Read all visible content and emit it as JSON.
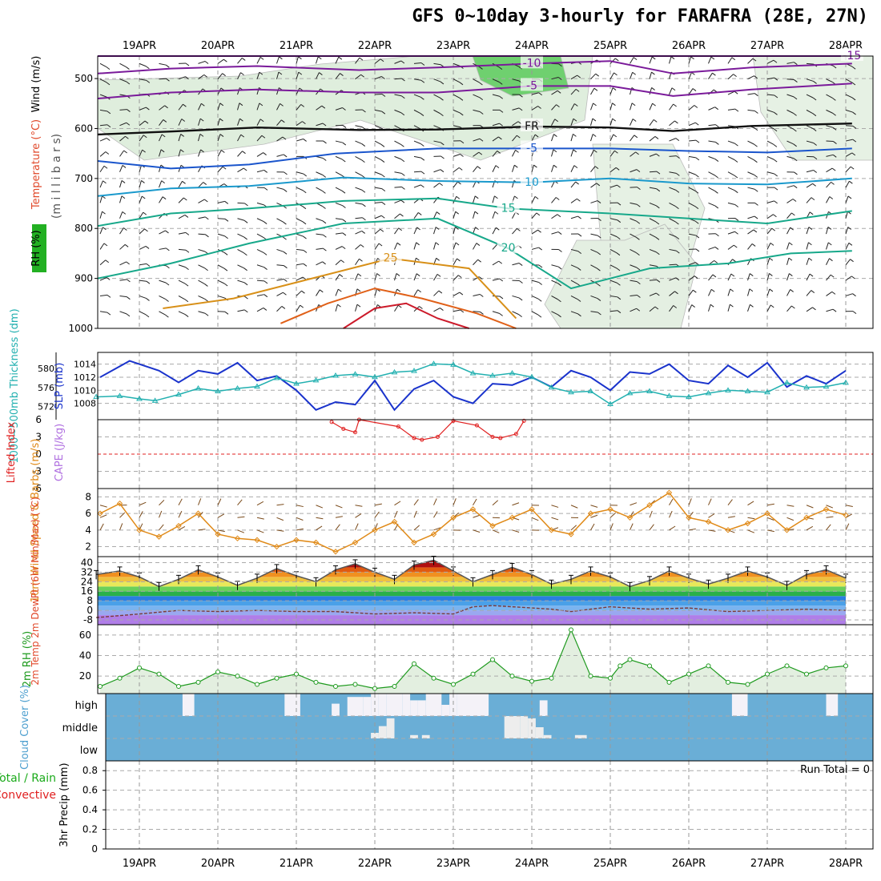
{
  "title": "GFS 0~10day 3-hourly for FARAFRA (28E, 27N)",
  "colors": {
    "sounding_label": "#555555",
    "temp": "#e0482a",
    "rh_box": "#22b022",
    "slp": "#1a33cc",
    "thickness": "#22b0b0",
    "cape": "#b070e0",
    "li": "#e02020",
    "wind10": "#e08a18",
    "barb": "#7a4a1a",
    "rh2m": "#1e9a1e",
    "cloud": "#6aaed6",
    "cloud_text": "#4d9fcf",
    "precip_total": "#1aaa1a",
    "precip_conv": "#e02020"
  },
  "chart_data": {
    "type": "meteogram",
    "time_axis": {
      "dates": [
        "19APR",
        "20APR",
        "21APR",
        "22APR",
        "23APR",
        "24APR",
        "25APR",
        "26APR",
        "27APR",
        "28APR"
      ],
      "range_days": [
        -0.55,
        9.1
      ]
    },
    "sounding": {
      "ylabel_pressure": "(m i l l i b a r s)",
      "ylabel_rh": "RH (%)",
      "ylabel_temp": "Temperature (°C)",
      "ylabel_wind": "Wind (m/s)",
      "pressure_ticks": [
        "500",
        "600",
        "700",
        "800",
        "900",
        "1000"
      ],
      "pressure_values": [
        500,
        600,
        700,
        800,
        900,
        1000
      ],
      "pressure_range": [
        455,
        1000
      ],
      "contours": [
        {
          "label": "-15",
          "color": "#7a1a9a",
          "t": [
            -0.55,
            9.1
          ],
          "p": [
            455,
            455
          ]
        },
        {
          "label": "-10",
          "color": "#7a1a9a",
          "t": [
            -0.55,
            0.4,
            1.5,
            2.8,
            3.8,
            5.0,
            6.0,
            6.8,
            7.8,
            9.1
          ],
          "p": [
            490,
            480,
            475,
            483,
            478,
            470,
            465,
            490,
            478,
            470
          ]
        },
        {
          "label": "-5",
          "color": "#7a1a9a",
          "t": [
            -0.55,
            0.4,
            1.5,
            2.8,
            3.8,
            5.0,
            6.0,
            6.8,
            7.8,
            9.1
          ],
          "p": [
            540,
            528,
            522,
            528,
            528,
            515,
            515,
            535,
            522,
            510
          ]
        },
        {
          "label": "FR",
          "color": "#111111",
          "t": [
            -0.55,
            0.4,
            1.5,
            2.8,
            3.8,
            5.0,
            6.0,
            6.8,
            7.8,
            9.1
          ],
          "p": [
            612,
            606,
            598,
            603,
            602,
            596,
            598,
            605,
            595,
            590
          ]
        },
        {
          "label": "-5",
          "color": "#1a55cc",
          "t": [
            -0.55,
            0.4,
            1.4,
            2.5,
            3.8,
            5.0,
            6.0,
            7.0,
            8.0,
            9.1
          ],
          "p": [
            665,
            680,
            672,
            650,
            640,
            640,
            640,
            645,
            648,
            640
          ]
        },
        {
          "label": "10",
          "color": "#1a99cc",
          "t": [
            -0.55,
            0.4,
            1.4,
            2.6,
            3.8,
            5.0,
            6.0,
            7.0,
            8.0,
            9.1
          ],
          "p": [
            735,
            720,
            715,
            698,
            705,
            708,
            700,
            710,
            712,
            700
          ]
        },
        {
          "label": "15",
          "color": "#17a88a",
          "t": [
            -0.55,
            0.4,
            1.4,
            2.6,
            3.8,
            4.7,
            6.0,
            7.0,
            8.0,
            9.1
          ],
          "p": [
            795,
            770,
            760,
            745,
            740,
            760,
            770,
            780,
            790,
            765
          ]
        },
        {
          "label": "20",
          "color": "#17a88a",
          "t": [
            -0.55,
            0.4,
            1.4,
            2.6,
            3.8,
            4.7,
            5.5,
            6.5,
            7.5,
            8.3,
            9.1
          ],
          "p": [
            900,
            870,
            830,
            790,
            780,
            840,
            920,
            880,
            870,
            850,
            845
          ]
        },
        {
          "label": "25",
          "color": "#d89018",
          "t": [
            0.3,
            1.2,
            2.2,
            3.2,
            4.2,
            4.8
          ],
          "p": [
            960,
            940,
            900,
            860,
            880,
            980
          ]
        },
        {
          "label": "",
          "color": "#e06018",
          "t": [
            1.8,
            2.4,
            3.0,
            3.6,
            4.3,
            4.8
          ],
          "p": [
            990,
            950,
            920,
            940,
            970,
            1000
          ]
        },
        {
          "label": "",
          "color": "#cc1a2a",
          "t": [
            2.6,
            3.0,
            3.4,
            3.8,
            4.2
          ],
          "p": [
            1000,
            960,
            950,
            980,
            1000
          ]
        }
      ]
    },
    "slp_thickness": {
      "ylabel_slp": "SLP (mb)",
      "ylabel_thickness": "1000~500mb Thickness (dm)",
      "slp_ticks": [
        "1014",
        "1012",
        "1010",
        "1008"
      ],
      "slp_tick_values": [
        1014,
        1012,
        1010,
        1008
      ],
      "slp_range": [
        1005.5,
        1015.8
      ],
      "thickness_ticks": [
        "580",
        "576",
        "572"
      ],
      "thickness_tick_values": [
        580,
        576,
        572
      ],
      "thickness_range": [
        569.2,
        583.4
      ],
      "slp_t": [
        -0.5,
        -0.125,
        0.25,
        0.5,
        0.75,
        1.0,
        1.25,
        1.5,
        1.75,
        2.0,
        2.25,
        2.5,
        2.75,
        3.0,
        3.25,
        3.5,
        3.75,
        4.0,
        4.25,
        4.5,
        4.75,
        5.0,
        5.25,
        5.5,
        5.75,
        6.0,
        6.25,
        6.5,
        6.75,
        7.0,
        7.25,
        7.5,
        7.75,
        8.0,
        8.25,
        8.5,
        8.75,
        9.0
      ],
      "slp": [
        1012.0,
        1014.5,
        1013.0,
        1011.2,
        1013.0,
        1012.5,
        1014.2,
        1011.5,
        1012.2,
        1010.0,
        1007.0,
        1008.2,
        1007.8,
        1011.5,
        1007.0,
        1010.2,
        1011.5,
        1009.0,
        1008.0,
        1011.0,
        1010.8,
        1012.0,
        1010.5,
        1013.0,
        1012.0,
        1010.0,
        1012.8,
        1012.5,
        1014.0,
        1011.5,
        1011.0,
        1013.8,
        1012.0,
        1014.2,
        1010.5,
        1012.2,
        1011.0,
        1013.0
      ],
      "thk_t": [
        -0.55,
        -0.25,
        0.0,
        0.2,
        0.5,
        0.75,
        1.0,
        1.25,
        1.5,
        1.75,
        2.0,
        2.25,
        2.5,
        2.75,
        3.0,
        3.25,
        3.5,
        3.75,
        4.0,
        4.25,
        4.5,
        4.75,
        5.0,
        5.25,
        5.5,
        5.75,
        6.0,
        6.25,
        6.5,
        6.75,
        7.0,
        7.25,
        7.5,
        7.75,
        8.0,
        8.25,
        8.5,
        8.75,
        9.0
      ],
      "thickness": [
        574.0,
        574.2,
        573.6,
        573.2,
        574.5,
        575.8,
        575.2,
        575.8,
        576.2,
        578.0,
        576.8,
        577.5,
        578.5,
        578.8,
        578.2,
        579.2,
        579.5,
        581.0,
        580.8,
        579.0,
        578.5,
        579.0,
        578.2,
        576.0,
        575.0,
        575.2,
        572.5,
        574.8,
        575.2,
        574.2,
        574.0,
        574.8,
        575.4,
        575.2,
        575.0,
        577.0,
        576.0,
        576.2,
        577.0
      ]
    },
    "cape_li": {
      "ylabel_li": "Lifted Index",
      "ylabel_cape": "CAPE (J/kg)",
      "li_ticks": [
        "6",
        "3",
        "0",
        "-3",
        "-6"
      ],
      "li_tick_values": [
        6,
        3,
        0,
        -3,
        -6
      ],
      "li_range": [
        6,
        -6
      ],
      "li_t": [
        2.45,
        2.6,
        2.75,
        2.8,
        3.3,
        3.5,
        3.6,
        3.8,
        4.0,
        4.3,
        4.5,
        4.6,
        4.8,
        4.9
      ],
      "li": [
        5.6,
        4.4,
        3.8,
        6.0,
        4.8,
        2.8,
        2.5,
        3.0,
        5.8,
        5.0,
        3.0,
        2.8,
        3.5,
        5.8
      ]
    },
    "wind10m": {
      "ylabel": "10m Wind Speed & Barbs (m/s)",
      "ticks": [
        "8",
        "6",
        "4",
        "2"
      ],
      "tick_values": [
        8,
        6,
        4,
        2
      ],
      "range": [
        0.8,
        9.0
      ],
      "t": [
        -0.5,
        -0.25,
        0.0,
        0.25,
        0.5,
        0.75,
        1.0,
        1.25,
        1.5,
        1.75,
        2.0,
        2.25,
        2.5,
        2.75,
        3.0,
        3.25,
        3.5,
        3.75,
        4.0,
        4.25,
        4.5,
        4.75,
        5.0,
        5.25,
        5.5,
        5.75,
        6.0,
        6.25,
        6.5,
        6.75,
        7.0,
        7.25,
        7.5,
        7.75,
        8.0,
        8.25,
        8.5,
        8.75,
        9.0
      ],
      "speed": [
        6.0,
        7.2,
        4.0,
        3.2,
        4.5,
        6.0,
        3.5,
        3.0,
        2.8,
        2.0,
        2.8,
        2.5,
        1.4,
        2.5,
        4.0,
        5.0,
        2.5,
        3.5,
        5.5,
        6.5,
        4.5,
        5.5,
        6.5,
        4.0,
        3.5,
        6.0,
        6.5,
        5.5,
        7.0,
        8.5,
        5.5,
        5.0,
        4.0,
        4.8,
        6.0,
        4.0,
        5.5,
        6.5,
        5.8
      ]
    },
    "temp2m": {
      "ylabel": "2m Temp 2m DewPt (6hr Min/Max) (°C)",
      "ticks": [
        "40",
        "32",
        "24",
        "16",
        "8",
        "0",
        "-8"
      ],
      "tick_values": [
        40,
        32,
        24,
        16,
        8,
        0,
        -8
      ],
      "range": [
        -12,
        45
      ],
      "t": [
        -0.55,
        -0.25,
        0.0,
        0.25,
        0.5,
        0.75,
        1.0,
        1.25,
        1.5,
        1.75,
        2.0,
        2.25,
        2.5,
        2.75,
        3.0,
        3.25,
        3.5,
        3.75,
        4.0,
        4.25,
        4.5,
        4.75,
        5.0,
        5.25,
        5.5,
        5.75,
        6.0,
        6.25,
        6.5,
        6.75,
        7.0,
        7.25,
        7.5,
        7.75,
        8.0,
        8.25,
        8.5,
        8.75,
        9.0
      ],
      "temp": [
        30,
        33,
        28,
        20,
        26,
        34,
        28,
        21,
        27,
        35,
        29,
        24,
        34,
        39,
        32,
        26,
        38,
        42,
        33,
        24,
        30,
        36,
        30,
        22,
        26,
        33,
        28,
        20,
        25,
        33,
        27,
        22,
        27,
        33,
        28,
        21,
        30,
        34,
        27
      ],
      "dew_t": [
        -0.55,
        0.0,
        0.5,
        1.0,
        1.5,
        2.0,
        2.5,
        3.0,
        3.5,
        4.0,
        4.25,
        4.5,
        5.0,
        5.25,
        5.5,
        6.0,
        6.5,
        7.0,
        7.5,
        8.0,
        8.5,
        9.0
      ],
      "dewpt": [
        -6,
        -3,
        0,
        -1,
        0,
        -1,
        -1,
        -3,
        -2,
        -3,
        3,
        4,
        2,
        1,
        -1,
        3,
        1,
        2,
        -1,
        0,
        1,
        0
      ]
    },
    "rh2m": {
      "ylabel": "2m RH (%)",
      "ticks": [
        "60",
        "40",
        "20"
      ],
      "tick_values": [
        60,
        40,
        20
      ],
      "range": [
        3,
        70
      ],
      "t": [
        -0.5,
        -0.25,
        0.0,
        0.25,
        0.5,
        0.75,
        1.0,
        1.25,
        1.5,
        1.75,
        2.0,
        2.25,
        2.5,
        2.75,
        3.0,
        3.25,
        3.5,
        3.75,
        4.0,
        4.25,
        4.5,
        4.75,
        5.0,
        5.25,
        5.5,
        5.75,
        6.0,
        6.125,
        6.25,
        6.5,
        6.75,
        7.0,
        7.25,
        7.5,
        7.75,
        8.0,
        8.25,
        8.5,
        8.75,
        9.0
      ],
      "rh": [
        10,
        18,
        28,
        22,
        10,
        14,
        24,
        20,
        12,
        18,
        22,
        14,
        10,
        12,
        8,
        10,
        32,
        18,
        12,
        22,
        36,
        20,
        15,
        18,
        65,
        20,
        18,
        30,
        36,
        30,
        14,
        22,
        30,
        14,
        12,
        22,
        30,
        22,
        28,
        30
      ]
    },
    "cloud": {
      "ylabel": "Cloud Cover (%)",
      "layers": [
        "high",
        "middle",
        "low"
      ],
      "high_blocks": [
        [
          0.55,
          0.7
        ],
        [
          1.85,
          2.05
        ],
        [
          2.45,
          2.55
        ],
        [
          2.65,
          2.75
        ],
        [
          2.75,
          2.85
        ],
        [
          2.85,
          2.95
        ],
        [
          2.95,
          3.05
        ],
        [
          3.05,
          3.15
        ],
        [
          3.15,
          3.25
        ],
        [
          3.25,
          3.35
        ],
        [
          3.35,
          3.45
        ],
        [
          3.45,
          3.55
        ],
        [
          3.55,
          3.65
        ],
        [
          3.65,
          3.75
        ],
        [
          3.75,
          3.85
        ],
        [
          3.85,
          3.95
        ],
        [
          3.95,
          4.05
        ],
        [
          4.05,
          4.25
        ],
        [
          4.25,
          4.45
        ],
        [
          5.1,
          5.2
        ],
        [
          7.55,
          7.75
        ],
        [
          8.75,
          8.9
        ]
      ],
      "high_fill": [
        1,
        1,
        0.55,
        0.85,
        0.85,
        0.85,
        1,
        1,
        1,
        1,
        1,
        0.7,
        0.7,
        1,
        1,
        0.5,
        1,
        1,
        1,
        0.7,
        1,
        1
      ],
      "mid_blocks": [
        [
          2.95,
          3.05
        ],
        [
          3.05,
          3.15
        ],
        [
          3.15,
          3.25
        ],
        [
          3.45,
          3.55
        ],
        [
          3.6,
          3.7
        ],
        [
          4.65,
          4.75
        ],
        [
          4.75,
          4.85
        ],
        [
          4.85,
          4.95
        ],
        [
          4.95,
          5.05
        ],
        [
          5.05,
          5.15
        ],
        [
          5.15,
          5.25
        ],
        [
          5.55,
          5.7
        ]
      ],
      "mid_fill": [
        0.25,
        0.55,
        0.9,
        0.15,
        0.15,
        1,
        1,
        1,
        0.9,
        0.5,
        0.15,
        0.15
      ]
    },
    "precip": {
      "ylabel": "3hr Precip (mm)",
      "total_label": "Total / Rain",
      "conv_label": "Convective",
      "run_total": "Run Total = 0",
      "ticks": [
        "0.8",
        "0.6",
        "0.4",
        "0.2",
        "0"
      ],
      "tick_values": [
        0.8,
        0.6,
        0.4,
        0.2,
        0
      ],
      "range": [
        0,
        0.9
      ],
      "total": [],
      "convective": []
    }
  }
}
